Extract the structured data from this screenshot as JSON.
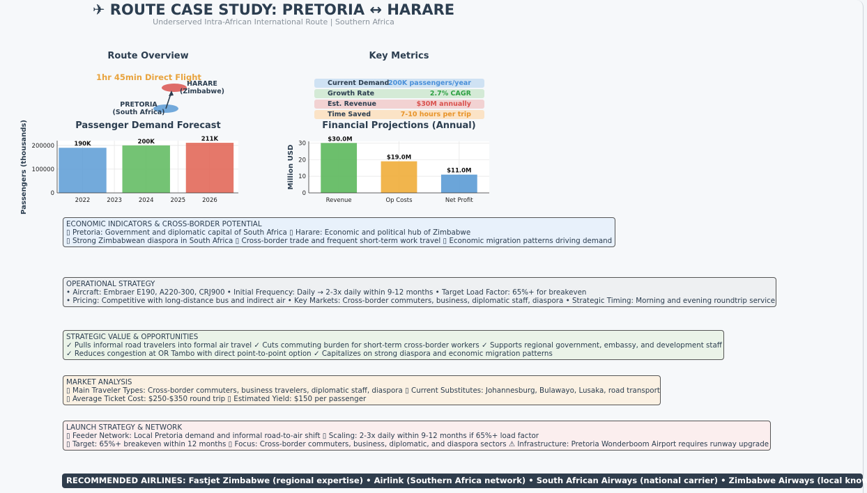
{
  "header": {
    "title": "✈ ROUTE CASE STUDY: PRETORIA ↔ HARARE",
    "subtitle": "Underserved Intra-African International Route | Southern Africa"
  },
  "route_overview": {
    "title": "Route Overview",
    "duration": "1hr 45min Direct Flight",
    "origin": {
      "line1": "PRETORIA",
      "line2": "(South Africa)",
      "color": "#5b9bd5"
    },
    "destination": {
      "line1": "HARARE",
      "line2": "(Zimbabwe)",
      "color": "#d9534f"
    }
  },
  "key_metrics": {
    "title": "Key Metrics",
    "items": [
      {
        "label": "Current Demand",
        "value": "200K passengers/year",
        "bg": "#cfe2f3",
        "color": "#4a90d9"
      },
      {
        "label": "Growth Rate",
        "value": "2.7% CAGR",
        "bg": "#d4ead6",
        "color": "#2ea043"
      },
      {
        "label": "Est. Revenue",
        "value": "$30M annually",
        "bg": "#f2d2d2",
        "color": "#d9534f"
      },
      {
        "label": "Time Saved",
        "value": "7-10 hours per trip",
        "bg": "#fbe3c6",
        "color": "#e8942a"
      }
    ]
  },
  "chart_data": [
    {
      "type": "bar",
      "title": "Passenger Demand Forecast",
      "xlabel": "",
      "ylabel": "Passengers (thousands)",
      "x": [
        2022,
        2024,
        2026
      ],
      "values": [
        190000,
        200000,
        211000
      ],
      "data_labels": [
        "190K",
        "200K",
        "211K"
      ],
      "colors": [
        "#5b9bd5",
        "#5cb85c",
        "#e06050"
      ],
      "xticks": [
        "2022",
        "2023",
        "2024",
        "2025",
        "2026"
      ],
      "yticks": [
        "0",
        "100000",
        "200000"
      ],
      "ylim": [
        0,
        220000
      ],
      "grid": true
    },
    {
      "type": "bar",
      "title": "Financial Projections (Annual)",
      "xlabel": "",
      "ylabel": "Million USD",
      "categories": [
        "Revenue",
        "Op Costs",
        "Net Profit"
      ],
      "values": [
        30,
        19,
        11
      ],
      "data_labels": [
        "$30.0M",
        "$19.0M",
        "$11.0M"
      ],
      "colors": [
        "#5cb85c",
        "#f0ad3a",
        "#5b9bd5"
      ],
      "yticks": [
        "0",
        "10",
        "20",
        "30"
      ],
      "ylim": [
        0,
        31
      ],
      "grid": true
    }
  ],
  "sections": [
    {
      "title": "ECONOMIC INDICATORS & CROSS-BORDER POTENTIAL",
      "line1": "▯ Pretoria: Government and diplomatic capital of South Africa  ▯ Harare: Economic and political hub of Zimbabwe",
      "line2": "▯ Strong Zimbabwean diaspora in South Africa  ▯ Cross-border trade and frequent short-term work travel  ▯ Economic migration patterns driving demand",
      "bg": "#e8f1fb"
    },
    {
      "title": "OPERATIONAL STRATEGY",
      "line1": "• Aircraft: Embraer E190, A220-300, CRJ900  • Initial Frequency: Daily → 2-3x daily within 9-12 months  • Target Load Factor: 65%+ for breakeven",
      "line2": "• Pricing: Competitive with long-distance bus and indirect air  • Key Markets: Cross-border commuters, business, diplomatic staff, diaspora  • Strategic Timing: Morning and evening roundtrip service",
      "bg": "#eef0f2"
    },
    {
      "title": "STRATEGIC VALUE & OPPORTUNITIES",
      "line1": "✓ Pulls informal road travelers into formal air travel  ✓ Cuts commuting burden for short-term cross-border workers  ✓ Supports regional government, embassy, and development staff",
      "line2": "✓ Reduces congestion at OR Tambo with direct point-to-point option  ✓ Capitalizes on strong diaspora and economic migration patterns",
      "bg": "#eaf3e8"
    },
    {
      "title": "MARKET ANALYSIS",
      "line1": "▯ Main Traveler Types: Cross-border commuters, business travelers, diplomatic staff, diaspora  ▯ Current Substitutes: Johannesburg, Bulawayo, Lusaka, road transport",
      "line2": "▯ Average Ticket Cost: $250-$350 round trip  ▯ Estimated Yield: $150 per passenger",
      "bg": "#fbf1e3"
    },
    {
      "title": "LAUNCH STRATEGY & NETWORK",
      "line1": "▯ Feeder Network: Local Pretoria demand and informal road-to-air shift  ▯ Scaling: 2-3x daily within 9-12 months if 65%+ load factor",
      "line2": "▯ Target: 65%+ breakeven within 12 months  ▯ Focus: Cross-border commuters, business, diplomatic, and diaspora sectors  ⚠ Infrastructure: Pretoria Wonderboom Airport requires runway upgrade",
      "bg": "#fbeeee"
    }
  ],
  "recommended": "RECOMMENDED AIRLINES: Fastjet Zimbabwe (regional expertise) • Airlink (Southern Africa network) • South African Airways (national carrier) • Zimbabwe Airways (local knowledge)"
}
